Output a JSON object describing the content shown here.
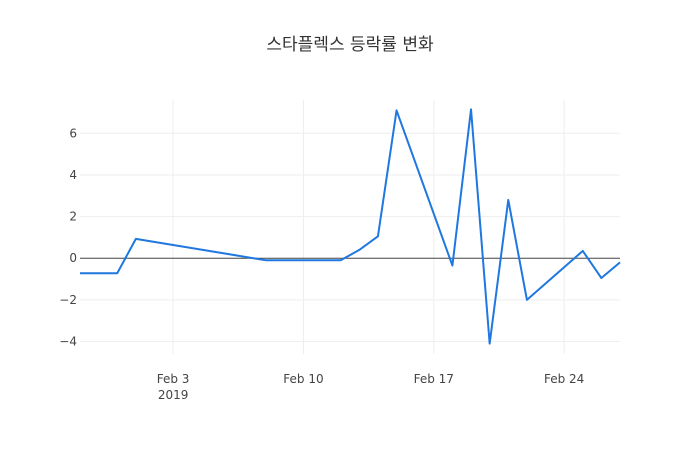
{
  "chart_data": {
    "type": "line",
    "title": "스타플렉스 등락률 변화",
    "xlabel": "",
    "ylabel": "",
    "x": [
      "2019-01-29",
      "2019-01-30",
      "2019-01-31",
      "2019-02-01",
      "2019-02-08",
      "2019-02-11",
      "2019-02-12",
      "2019-02-13",
      "2019-02-14",
      "2019-02-15",
      "2019-02-18",
      "2019-02-19",
      "2019-02-20",
      "2019-02-21",
      "2019-02-22",
      "2019-02-25",
      "2019-02-26",
      "2019-02-27"
    ],
    "series": [
      {
        "values": [
          -0.72,
          -0.72,
          -0.72,
          0.93,
          -0.1,
          -0.1,
          -0.1,
          0.4,
          1.05,
          7.1,
          -0.35,
          7.15,
          -4.1,
          2.8,
          -2.0,
          0.35,
          -0.95,
          -0.2
        ],
        "color": "#1f77e0"
      }
    ],
    "xlim": [
      "2019-01-29",
      "2019-02-27"
    ],
    "ylim": [
      -4.6,
      7.6
    ],
    "yticks": [
      -4,
      -2,
      0,
      2,
      4,
      6
    ],
    "ytick_labels": [
      "−4",
      "−2",
      "0",
      "2",
      "4",
      "6"
    ],
    "xticks": [
      "2019-02-03",
      "2019-02-10",
      "2019-02-17",
      "2019-02-24"
    ],
    "xtick_labels": [
      "Feb 3",
      "Feb 10",
      "Feb 17",
      "Feb 24"
    ],
    "xtick_year": "2019",
    "grid": true,
    "legend": false
  }
}
